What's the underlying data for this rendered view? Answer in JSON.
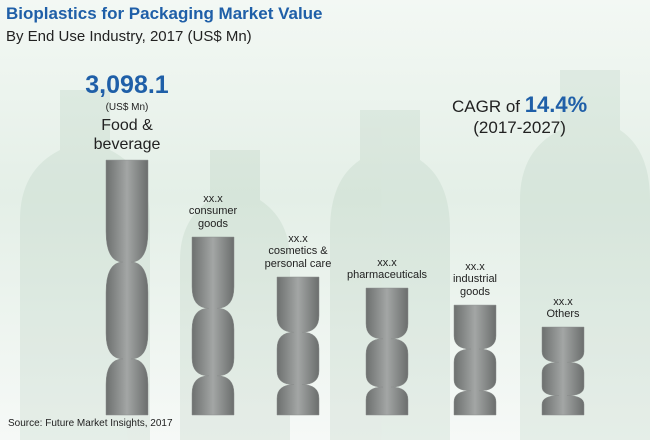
{
  "chart_data": {
    "type": "bar",
    "title": "Bioplastics for Packaging Market  Value",
    "subtitle": "By End Use Industry, 2017 (US$ Mn)",
    "categories": [
      "Food & beverage",
      "consumer goods",
      "cosmetics & personal care",
      "pharmaceuticals",
      "industrial goods",
      "Others"
    ],
    "values": [
      3098.1,
      2163,
      1677,
      1543,
      1336,
      1069
    ],
    "value_labels": [
      "3,098.1",
      "xx.x",
      "xx.x",
      "xx.x",
      "xx.x",
      "xx.x"
    ],
    "value_unit": "(US$ Mn)",
    "color": "#8a8d8c",
    "ylim": [
      0,
      3500
    ],
    "cagr": {
      "label": "CAGR of",
      "value": "14.4%",
      "period": "(2017-2027)"
    },
    "source": "Source: Future Market Insights, 2017"
  }
}
